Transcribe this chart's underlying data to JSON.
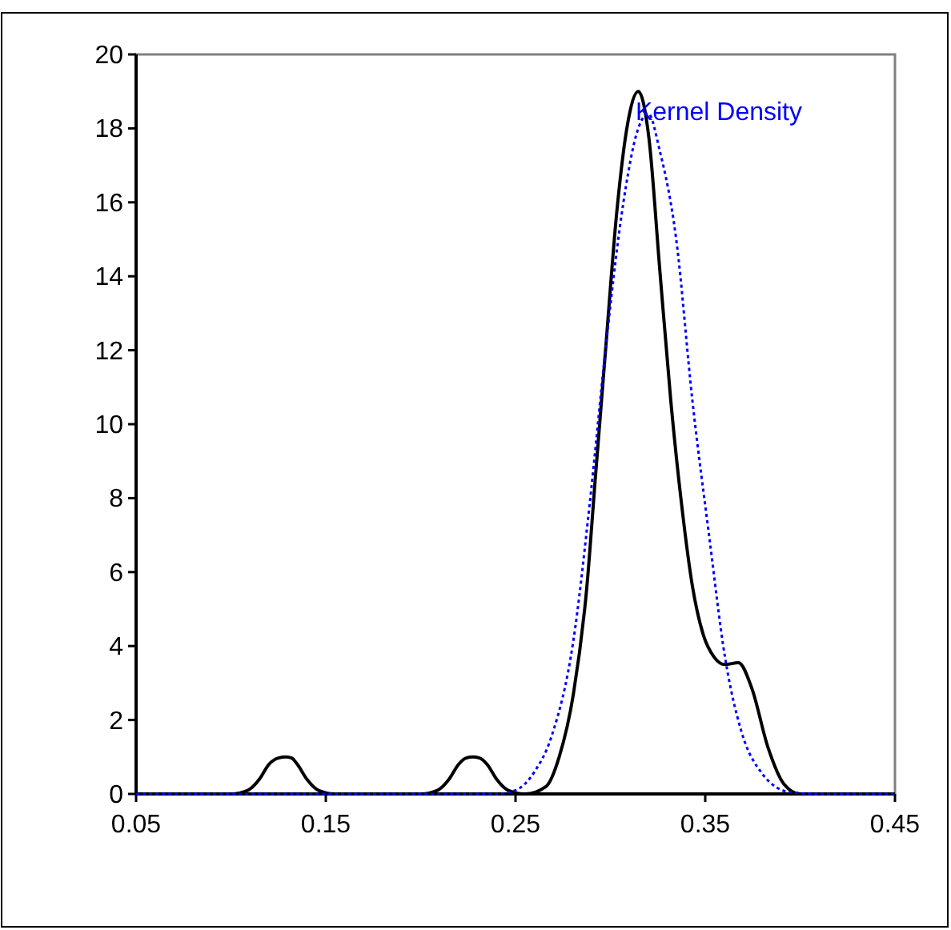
{
  "chart_data": {
    "type": "line",
    "xlim": [
      0.05,
      0.45
    ],
    "xticks": [
      0.05,
      0.15,
      0.25,
      0.35,
      0.45
    ],
    "ylim": [
      0,
      20
    ],
    "yticks": [
      0,
      2,
      4,
      6,
      8,
      10,
      12,
      14,
      16,
      18,
      20
    ],
    "grid": false,
    "marker": "none",
    "series": [
      {
        "color": "#000000",
        "line_style": "solid",
        "x": [
          0.05,
          0.1,
          0.105,
          0.11,
          0.115,
          0.12,
          0.125,
          0.129,
          0.132,
          0.135,
          0.14,
          0.145,
          0.15,
          0.155,
          0.16,
          0.2,
          0.205,
          0.21,
          0.215,
          0.22,
          0.224,
          0.2275,
          0.231,
          0.235,
          0.24,
          0.245,
          0.25,
          0.255,
          0.266,
          0.273,
          0.2805,
          0.2876,
          0.292,
          0.2976,
          0.3033,
          0.309,
          0.3147,
          0.3204,
          0.326,
          0.3319,
          0.3376,
          0.3433,
          0.349,
          0.3547,
          0.3604,
          0.3675,
          0.3746,
          0.383,
          0.3916,
          0.4,
          0.45
        ],
        "values": [
          0,
          0,
          0.03,
          0.13,
          0.4,
          0.8,
          0.97,
          1,
          0.97,
          0.8,
          0.4,
          0.13,
          0.03,
          0,
          0,
          0,
          0.03,
          0.13,
          0.4,
          0.8,
          0.97,
          1,
          0.97,
          0.8,
          0.4,
          0.13,
          0.03,
          0,
          0.2,
          1.0,
          2.7,
          5.6,
          8.5,
          12.1,
          15.7,
          18.1,
          19,
          17.7,
          14.2,
          10.6,
          7.8,
          5.6,
          4.3,
          3.7,
          3.5,
          3.55,
          2.85,
          1.27,
          0.26,
          0,
          0
        ]
      },
      {
        "name": "Kernel Density",
        "color": "#0000ff",
        "line_style": "dotted",
        "x": [
          0.05,
          0.24,
          0.25,
          0.26,
          0.269,
          0.2805,
          0.289,
          0.2976,
          0.306,
          0.3147,
          0.32,
          0.326,
          0.3347,
          0.3433,
          0.352,
          0.3604,
          0.369,
          0.38,
          0.3945,
          0.41,
          0.45
        ],
        "values": [
          0,
          0,
          0.1,
          0.6,
          1.56,
          4.15,
          7.8,
          12.1,
          15.7,
          18,
          18.4,
          17.4,
          15,
          10.6,
          7,
          3.7,
          1.7,
          0.55,
          0.05,
          0,
          0
        ]
      }
    ]
  }
}
